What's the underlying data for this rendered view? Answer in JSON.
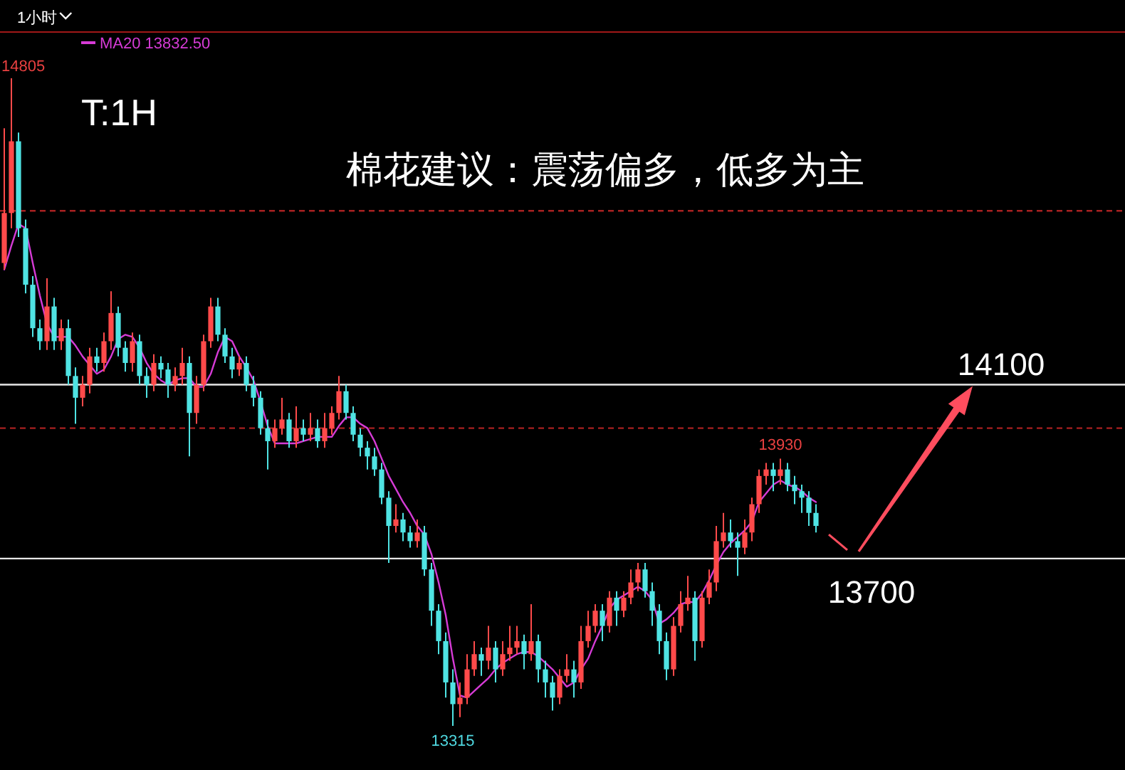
{
  "chart_data": {
    "type": "candlestick",
    "title": "1小时",
    "legend": "top left",
    "categories": [
      null,
      null,
      null,
      null,
      null,
      null,
      null,
      null,
      null,
      null,
      null,
      null,
      null,
      null,
      null,
      null,
      null,
      null,
      null,
      null,
      null,
      null,
      null,
      null,
      null,
      null,
      null,
      null,
      null,
      null,
      null,
      null,
      null,
      null,
      null,
      null,
      null,
      null,
      null,
      null,
      null,
      null,
      null,
      null,
      null,
      null,
      null,
      null,
      null,
      null,
      null,
      null,
      null,
      null,
      null,
      null,
      null,
      null,
      null,
      null,
      null,
      null,
      null,
      null,
      null,
      null,
      null,
      null,
      null,
      null,
      null,
      null,
      null,
      null,
      null,
      null,
      null,
      null,
      null,
      null,
      null,
      null,
      null,
      null,
      null,
      null,
      null,
      null,
      null,
      null,
      null,
      null,
      null,
      null,
      null,
      null,
      null,
      null,
      null,
      null,
      null,
      null,
      null,
      null,
      null,
      null,
      null,
      null,
      null,
      null,
      null,
      null,
      null,
      null,
      null
    ],
    "ohlc": [
      [
        14380,
        14690,
        14365,
        14495
      ],
      [
        14495,
        14805,
        14460,
        14660
      ],
      [
        14660,
        14680,
        14440,
        14460
      ],
      [
        14460,
        14480,
        14310,
        14330
      ],
      [
        14330,
        14350,
        14210,
        14230
      ],
      [
        14230,
        14250,
        14180,
        14200
      ],
      [
        14200,
        14345,
        14180,
        14280
      ],
      [
        14280,
        14300,
        14180,
        14200
      ],
      [
        14200,
        14250,
        14180,
        14230
      ],
      [
        14230,
        14250,
        14100,
        14120
      ],
      [
        14120,
        14140,
        14010,
        14070
      ],
      [
        14070,
        14120,
        14050,
        14100
      ],
      [
        14100,
        14185,
        14080,
        14165
      ],
      [
        14165,
        14185,
        14130,
        14150
      ],
      [
        14150,
        14220,
        14130,
        14200
      ],
      [
        14200,
        14315,
        14180,
        14265
      ],
      [
        14265,
        14280,
        14165,
        14185
      ],
      [
        14185,
        14200,
        14130,
        14150
      ],
      [
        14150,
        14220,
        14130,
        14200
      ],
      [
        14200,
        14215,
        14100,
        14120
      ],
      [
        14120,
        14140,
        14070,
        14100
      ],
      [
        14100,
        14170,
        14085,
        14150
      ],
      [
        14150,
        14165,
        14115,
        14135
      ],
      [
        14135,
        14150,
        14070,
        14100
      ],
      [
        14100,
        14140,
        14085,
        14120
      ],
      [
        14120,
        14185,
        14100,
        14150
      ],
      [
        14150,
        14165,
        13935,
        14035
      ],
      [
        14035,
        14120,
        14010,
        14100
      ],
      [
        14100,
        14215,
        14085,
        14200
      ],
      [
        14200,
        14300,
        14185,
        14280
      ],
      [
        14280,
        14300,
        14200,
        14215
      ],
      [
        14215,
        14230,
        14150,
        14165
      ],
      [
        14165,
        14185,
        14115,
        14135
      ],
      [
        14135,
        14165,
        14120,
        14150
      ],
      [
        14150,
        14165,
        14085,
        14100
      ],
      [
        14100,
        14120,
        14050,
        14070
      ],
      [
        14070,
        14085,
        13985,
        14000
      ],
      [
        14000,
        14020,
        13905,
        13970
      ],
      [
        13970,
        14020,
        13955,
        14000
      ],
      [
        14000,
        14070,
        13985,
        14020
      ],
      [
        14020,
        14035,
        13955,
        13970
      ],
      [
        13970,
        14050,
        13955,
        14000
      ],
      [
        14000,
        14020,
        13970,
        13985
      ],
      [
        13985,
        14035,
        13970,
        14000
      ],
      [
        14000,
        14020,
        13955,
        13970
      ],
      [
        13970,
        14035,
        13955,
        14000
      ],
      [
        14000,
        14050,
        13985,
        14035
      ],
      [
        14035,
        14120,
        14020,
        14085
      ],
      [
        14085,
        14100,
        14020,
        14035
      ],
      [
        14035,
        14050,
        13970,
        13985
      ],
      [
        13985,
        14000,
        13935,
        13955
      ],
      [
        13955,
        13970,
        13905,
        13935
      ],
      [
        13935,
        13955,
        13890,
        13905
      ],
      [
        13905,
        13920,
        13825,
        13840
      ],
      [
        13840,
        13855,
        13690,
        13775
      ],
      [
        13775,
        13825,
        13760,
        13790
      ],
      [
        13790,
        13805,
        13740,
        13760
      ],
      [
        13760,
        13775,
        13725,
        13740
      ],
      [
        13740,
        13790,
        13725,
        13760
      ],
      [
        13760,
        13775,
        13660,
        13675
      ],
      [
        13675,
        13690,
        13545,
        13580
      ],
      [
        13580,
        13595,
        13480,
        13510
      ],
      [
        13510,
        13530,
        13380,
        13415
      ],
      [
        13415,
        13445,
        13315,
        13365
      ],
      [
        13365,
        13415,
        13335,
        13380
      ],
      [
        13380,
        13480,
        13365,
        13445
      ],
      [
        13445,
        13510,
        13430,
        13480
      ],
      [
        13480,
        13495,
        13430,
        13465
      ],
      [
        13465,
        13545,
        13445,
        13495
      ],
      [
        13495,
        13510,
        13415,
        13445
      ],
      [
        13445,
        13510,
        13430,
        13480
      ],
      [
        13480,
        13545,
        13465,
        13495
      ],
      [
        13495,
        13545,
        13480,
        13510
      ],
      [
        13510,
        13525,
        13445,
        13480
      ],
      [
        13480,
        13595,
        13465,
        13510
      ],
      [
        13510,
        13525,
        13415,
        13445
      ],
      [
        13445,
        13465,
        13380,
        13415
      ],
      [
        13415,
        13430,
        13350,
        13380
      ],
      [
        13380,
        13445,
        13365,
        13430
      ],
      [
        13430,
        13480,
        13415,
        13445
      ],
      [
        13445,
        13465,
        13380,
        13415
      ],
      [
        13415,
        13545,
        13400,
        13510
      ],
      [
        13510,
        13580,
        13495,
        13545
      ],
      [
        13545,
        13595,
        13530,
        13580
      ],
      [
        13580,
        13595,
        13510,
        13545
      ],
      [
        13545,
        13625,
        13530,
        13610
      ],
      [
        13610,
        13625,
        13545,
        13580
      ],
      [
        13580,
        13625,
        13565,
        13610
      ],
      [
        13610,
        13675,
        13595,
        13645
      ],
      [
        13645,
        13690,
        13625,
        13675
      ],
      [
        13675,
        13690,
        13610,
        13625
      ],
      [
        13625,
        13645,
        13545,
        13580
      ],
      [
        13580,
        13595,
        13480,
        13510
      ],
      [
        13510,
        13530,
        13420,
        13445
      ],
      [
        13445,
        13565,
        13430,
        13545
      ],
      [
        13545,
        13625,
        13530,
        13595
      ],
      [
        13595,
        13660,
        13580,
        13610
      ],
      [
        13610,
        13625,
        13465,
        13510
      ],
      [
        13510,
        13625,
        13495,
        13610
      ],
      [
        13610,
        13675,
        13595,
        13645
      ],
      [
        13645,
        13775,
        13625,
        13740
      ],
      [
        13740,
        13805,
        13725,
        13760
      ],
      [
        13760,
        13790,
        13725,
        13740
      ],
      [
        13740,
        13760,
        13660,
        13725
      ],
      [
        13725,
        13790,
        13710,
        13760
      ],
      [
        13760,
        13840,
        13740,
        13825
      ],
      [
        13825,
        13905,
        13805,
        13890
      ],
      [
        13890,
        13920,
        13870,
        13905
      ],
      [
        13905,
        13920,
        13855,
        13890
      ],
      [
        13890,
        13930,
        13870,
        13905
      ],
      [
        13905,
        13920,
        13855,
        13870
      ],
      [
        13870,
        13890,
        13825,
        13855
      ],
      [
        13855,
        13870,
        13805,
        13840
      ],
      [
        13840,
        13855,
        13775,
        13805
      ],
      [
        13805,
        13825,
        13760,
        13775
      ]
    ],
    "colors": [
      "#ff4a4a",
      "#ff4a4a",
      "#4fe3e3",
      "#4fe3e3",
      "#4fe3e3",
      "#4fe3e3",
      "#ff4a4a",
      "#4fe3e3",
      "#ff4a4a",
      "#4fe3e3",
      "#4fe3e3",
      "#ff4a4a",
      "#ff4a4a",
      "#4fe3e3",
      "#ff4a4a",
      "#ff4a4a",
      "#4fe3e3",
      "#4fe3e3",
      "#ff4a4a",
      "#4fe3e3",
      "#4fe3e3",
      "#ff4a4a",
      "#4fe3e3",
      "#4fe3e3",
      "#ff4a4a",
      "#ff4a4a",
      "#4fe3e3",
      "#ff4a4a",
      "#ff4a4a",
      "#ff4a4a",
      "#4fe3e3",
      "#4fe3e3",
      "#4fe3e3",
      "#ff4a4a",
      "#4fe3e3",
      "#4fe3e3",
      "#4fe3e3",
      "#4fe3e3",
      "#ff4a4a",
      "#ff4a4a",
      "#4fe3e3",
      "#ff4a4a",
      "#4fe3e3",
      "#ff4a4a",
      "#4fe3e3",
      "#ff4a4a",
      "#ff4a4a",
      "#ff4a4a",
      "#4fe3e3",
      "#4fe3e3",
      "#4fe3e3",
      "#4fe3e3",
      "#4fe3e3",
      "#4fe3e3",
      "#4fe3e3",
      "#ff4a4a",
      "#4fe3e3",
      "#4fe3e3",
      "#ff4a4a",
      "#4fe3e3",
      "#4fe3e3",
      "#4fe3e3",
      "#4fe3e3",
      "#4fe3e3",
      "#ff4a4a",
      "#ff4a4a",
      "#ff4a4a",
      "#4fe3e3",
      "#ff4a4a",
      "#4fe3e3",
      "#ff4a4a",
      "#ff4a4a",
      "#ff4a4a",
      "#4fe3e3",
      "#ff4a4a",
      "#4fe3e3",
      "#4fe3e3",
      "#4fe3e3",
      "#ff4a4a",
      "#ff4a4a",
      "#4fe3e3",
      "#ff4a4a",
      "#ff4a4a",
      "#ff4a4a",
      "#4fe3e3",
      "#ff4a4a",
      "#4fe3e3",
      "#ff4a4a",
      "#ff4a4a",
      "#ff4a4a",
      "#4fe3e3",
      "#4fe3e3",
      "#4fe3e3",
      "#4fe3e3",
      "#ff4a4a",
      "#ff4a4a",
      "#ff4a4a",
      "#4fe3e3",
      "#ff4a4a",
      "#ff4a4a",
      "#ff4a4a",
      "#ff4a4a",
      "#4fe3e3",
      "#4fe3e3",
      "#ff4a4a",
      "#ff4a4a",
      "#ff4a4a",
      "#ff4a4a",
      "#4fe3e3",
      "#ff4a4a",
      "#4fe3e3",
      "#4fe3e3",
      "#4fe3e3",
      "#4fe3e3",
      "#4fe3e3"
    ],
    "series": [
      {
        "type": "line",
        "name": "MA20 13832.50",
        "color": "#d63bd6",
        "values": [
          14365,
          14420,
          14470,
          14460,
          14380,
          14305,
          14240,
          14210,
          14210,
          14210,
          14190,
          14165,
          14145,
          14125,
          14135,
          14165,
          14205,
          14215,
          14210,
          14185,
          14150,
          14125,
          14110,
          14100,
          14110,
          14115,
          14115,
          14095,
          14095,
          14125,
          14175,
          14210,
          14200,
          14165,
          14140,
          14110,
          14060,
          14005,
          13965,
          13965,
          13965,
          13965,
          13970,
          13975,
          13980,
          13980,
          13980,
          14005,
          14025,
          14025,
          14010,
          14000,
          13970,
          13930,
          13890,
          13860,
          13830,
          13805,
          13775,
          13755,
          13710,
          13645,
          13570,
          13470,
          13385,
          13380,
          13395,
          13410,
          13425,
          13445,
          13460,
          13470,
          13480,
          13485,
          13485,
          13475,
          13460,
          13445,
          13425,
          13405,
          13415,
          13445,
          13470,
          13510,
          13545,
          13585,
          13605,
          13615,
          13625,
          13635,
          13625,
          13605,
          13550,
          13560,
          13575,
          13595,
          13600,
          13600,
          13620,
          13650,
          13685,
          13715,
          13735,
          13750,
          13765,
          13785,
          13830,
          13850,
          13870,
          13880,
          13870,
          13865,
          13855,
          13840,
          13830
        ]
      }
    ],
    "ref_lines": [
      {
        "axis": "y",
        "value": 14500,
        "color": "#a82020",
        "line_style": "dashed"
      },
      {
        "axis": "y",
        "value": 14100,
        "label": "14100",
        "color": "#e8e8e8"
      },
      {
        "axis": "y",
        "value": 14000,
        "color": "#a82020",
        "line_style": "dashed"
      },
      {
        "axis": "y",
        "value": 13700,
        "label": "13700",
        "color": "#e8e8e8"
      }
    ],
    "annotations": [
      "T:1H",
      "棉花建议：震荡偏多，低多为主",
      "14805",
      {
        "text": "13930",
        "y": 13930
      },
      {
        "text": "13315",
        "y": 13315
      }
    ]
  }
}
